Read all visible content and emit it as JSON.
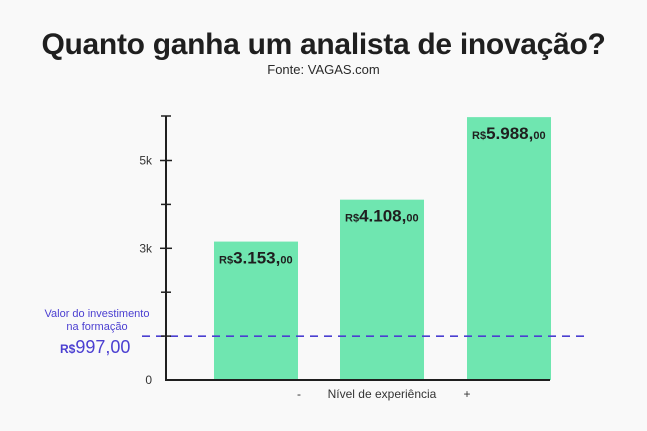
{
  "chart_data": {
    "type": "bar",
    "title": "Quanto ganha um analista de inovação?",
    "subtitle": "Fonte: VAGAS.com",
    "xlabel": "Nível de experiência",
    "x_ends": [
      "-",
      "+"
    ],
    "categories": [
      "",
      "",
      ""
    ],
    "values": [
      3153,
      4108,
      5988
    ],
    "value_labels": [
      {
        "prefix": "R$",
        "main": "3.153,",
        "cents": "00"
      },
      {
        "prefix": "R$",
        "main": "4.108,",
        "cents": "00"
      },
      {
        "prefix": "R$",
        "main": "5.988,",
        "cents": "00"
      }
    ],
    "ylim": [
      0,
      6000
    ],
    "y_ticks": [
      {
        "value": 0,
        "label": "0"
      },
      {
        "value": 3000,
        "label": "3k"
      },
      {
        "value": 5000,
        "label": "5k"
      }
    ],
    "y_minor_ticks": [
      1000,
      2000,
      4000
    ],
    "reference_line": {
      "value": 997,
      "note_line1": "Valor do investimento",
      "note_line2": "na formação",
      "prefix": "R$",
      "amount": "997,00"
    },
    "colors": {
      "bar": "#6fe6b0",
      "reference": "#4b3fd1",
      "axis": "#1f1f1f"
    }
  }
}
